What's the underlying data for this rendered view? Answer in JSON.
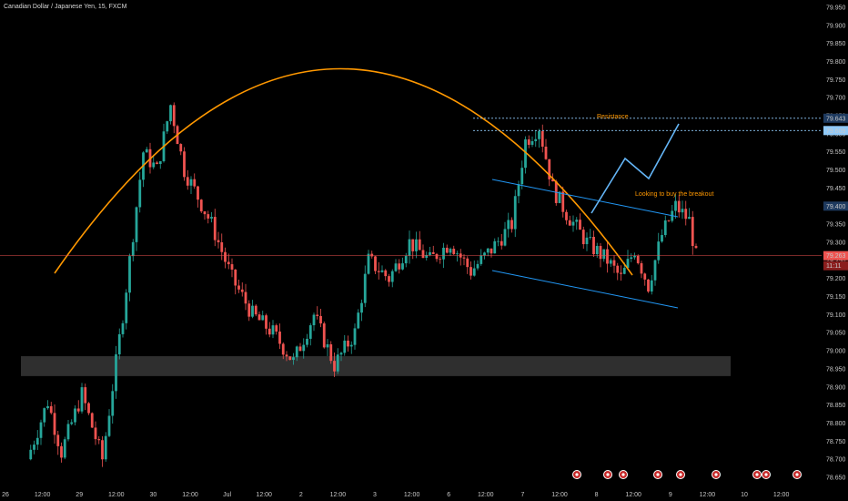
{
  "header": {
    "title": "Canadian Dollar / Japanese Yen, 15, FXCM"
  },
  "colors": {
    "background": "#000000",
    "up_candle": "#26a69a",
    "down_candle": "#ef5350",
    "arc": "#ff9800",
    "channel": "#2196f3",
    "projection": "#64b5f6",
    "support_zone": "#555555",
    "current_price": "#ef5350",
    "resistance": "#90caf9"
  },
  "chart_data": {
    "type": "candlestick",
    "symbol": "CADJPY",
    "timeframe": "15",
    "y_ticks": [
      "79.950",
      "79.900",
      "79.850",
      "79.800",
      "79.750",
      "79.700",
      "79.650",
      "79.600",
      "79.550",
      "79.500",
      "79.450",
      "79.400",
      "79.350",
      "79.300",
      "79.250",
      "79.200",
      "79.150",
      "79.100",
      "79.050",
      "79.000",
      "78.950",
      "78.900",
      "78.850",
      "78.800",
      "78.750",
      "78.700",
      "78.650"
    ],
    "ylim": [
      78.64,
      79.97
    ],
    "x_labels": [
      "26",
      "12:00",
      "29",
      "12:00",
      "30",
      "12:00",
      "Jul",
      "12:00",
      "2",
      "12:00",
      "3",
      "12:00",
      "6",
      "12:00",
      "7",
      "12:00",
      "8",
      "12:00",
      "9",
      "12:00",
      "10",
      "12:00"
    ],
    "price_tags": {
      "resistance_1": "79.643",
      "resistance_2": "79.609",
      "level_400": "79.400",
      "current": "79.263",
      "countdown": "11:11"
    },
    "price_series": [
      {
        "t": 0,
        "p": 78.7
      },
      {
        "t": 3,
        "p": 78.86
      },
      {
        "t": 5,
        "p": 78.72
      },
      {
        "t": 8,
        "p": 78.88
      },
      {
        "t": 11,
        "p": 78.7
      },
      {
        "t": 14,
        "p": 79.1
      },
      {
        "t": 17,
        "p": 79.55
      },
      {
        "t": 19,
        "p": 79.5
      },
      {
        "t": 21,
        "p": 79.68
      },
      {
        "t": 23,
        "p": 79.5
      },
      {
        "t": 27,
        "p": 79.35
      },
      {
        "t": 30,
        "p": 79.2
      },
      {
        "t": 33,
        "p": 79.1
      },
      {
        "t": 36,
        "p": 79.05
      },
      {
        "t": 39,
        "p": 78.97
      },
      {
        "t": 42,
        "p": 79.1
      },
      {
        "t": 45,
        "p": 78.96
      },
      {
        "t": 48,
        "p": 79.05
      },
      {
        "t": 50,
        "p": 79.25
      },
      {
        "t": 53,
        "p": 79.2
      },
      {
        "t": 56,
        "p": 79.3
      },
      {
        "t": 59,
        "p": 79.25
      },
      {
        "t": 62,
        "p": 79.3
      },
      {
        "t": 65,
        "p": 79.22
      },
      {
        "t": 68,
        "p": 79.28
      },
      {
        "t": 71,
        "p": 79.35
      },
      {
        "t": 73,
        "p": 79.58
      },
      {
        "t": 75,
        "p": 79.62
      },
      {
        "t": 77,
        "p": 79.45
      },
      {
        "t": 79,
        "p": 79.38
      },
      {
        "t": 82,
        "p": 79.3
      },
      {
        "t": 85,
        "p": 79.25
      },
      {
        "t": 87,
        "p": 79.2
      },
      {
        "t": 89,
        "p": 79.28
      },
      {
        "t": 91,
        "p": 79.18
      },
      {
        "t": 93,
        "p": 79.32
      },
      {
        "t": 95,
        "p": 79.4
      },
      {
        "t": 97,
        "p": 79.36
      },
      {
        "t": 98,
        "p": 79.26
      }
    ],
    "annotations": {
      "resistance_text": "Resistance",
      "breakout_text": "Looking to buy the breakout"
    },
    "support_zone": [
      78.93,
      78.985
    ],
    "current_price": 79.263,
    "resistance_levels": [
      79.643,
      79.609
    ]
  }
}
